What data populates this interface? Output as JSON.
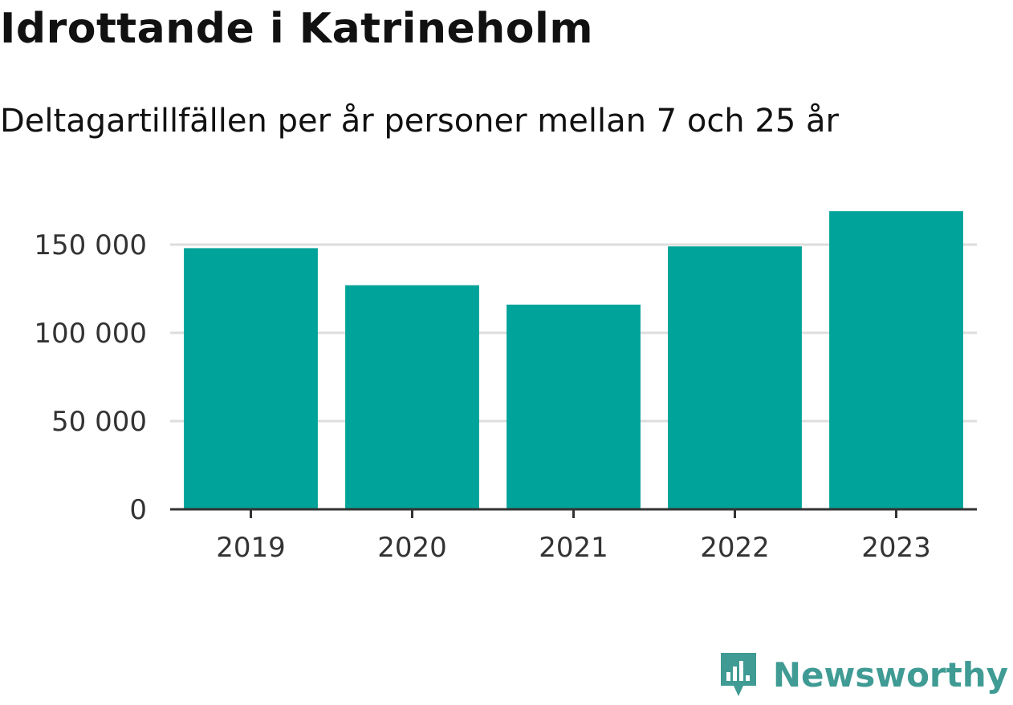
{
  "header": {
    "title": "Idrottande i Katrineholm",
    "subtitle": "Deltagartillfällen per år personer mellan 7 och 25 år"
  },
  "brand": {
    "name": "Newsworthy",
    "icon": "newsworthy-logo-icon",
    "color": "#3f9b94"
  },
  "chart_data": {
    "type": "bar",
    "title": "Idrottande i Katrineholm",
    "subtitle": "Deltagartillfällen per år personer mellan 7 och 25 år",
    "categories": [
      "2019",
      "2020",
      "2021",
      "2022",
      "2023"
    ],
    "values": [
      148000,
      127000,
      116000,
      149000,
      169000
    ],
    "yticks": [
      0,
      50000,
      100000,
      150000
    ],
    "ytick_labels": [
      "0",
      "50 000",
      "100 000",
      "150 000"
    ],
    "ylim": [
      0,
      175000
    ],
    "grid": true,
    "bar_color": "#00a399",
    "legend": "none"
  }
}
